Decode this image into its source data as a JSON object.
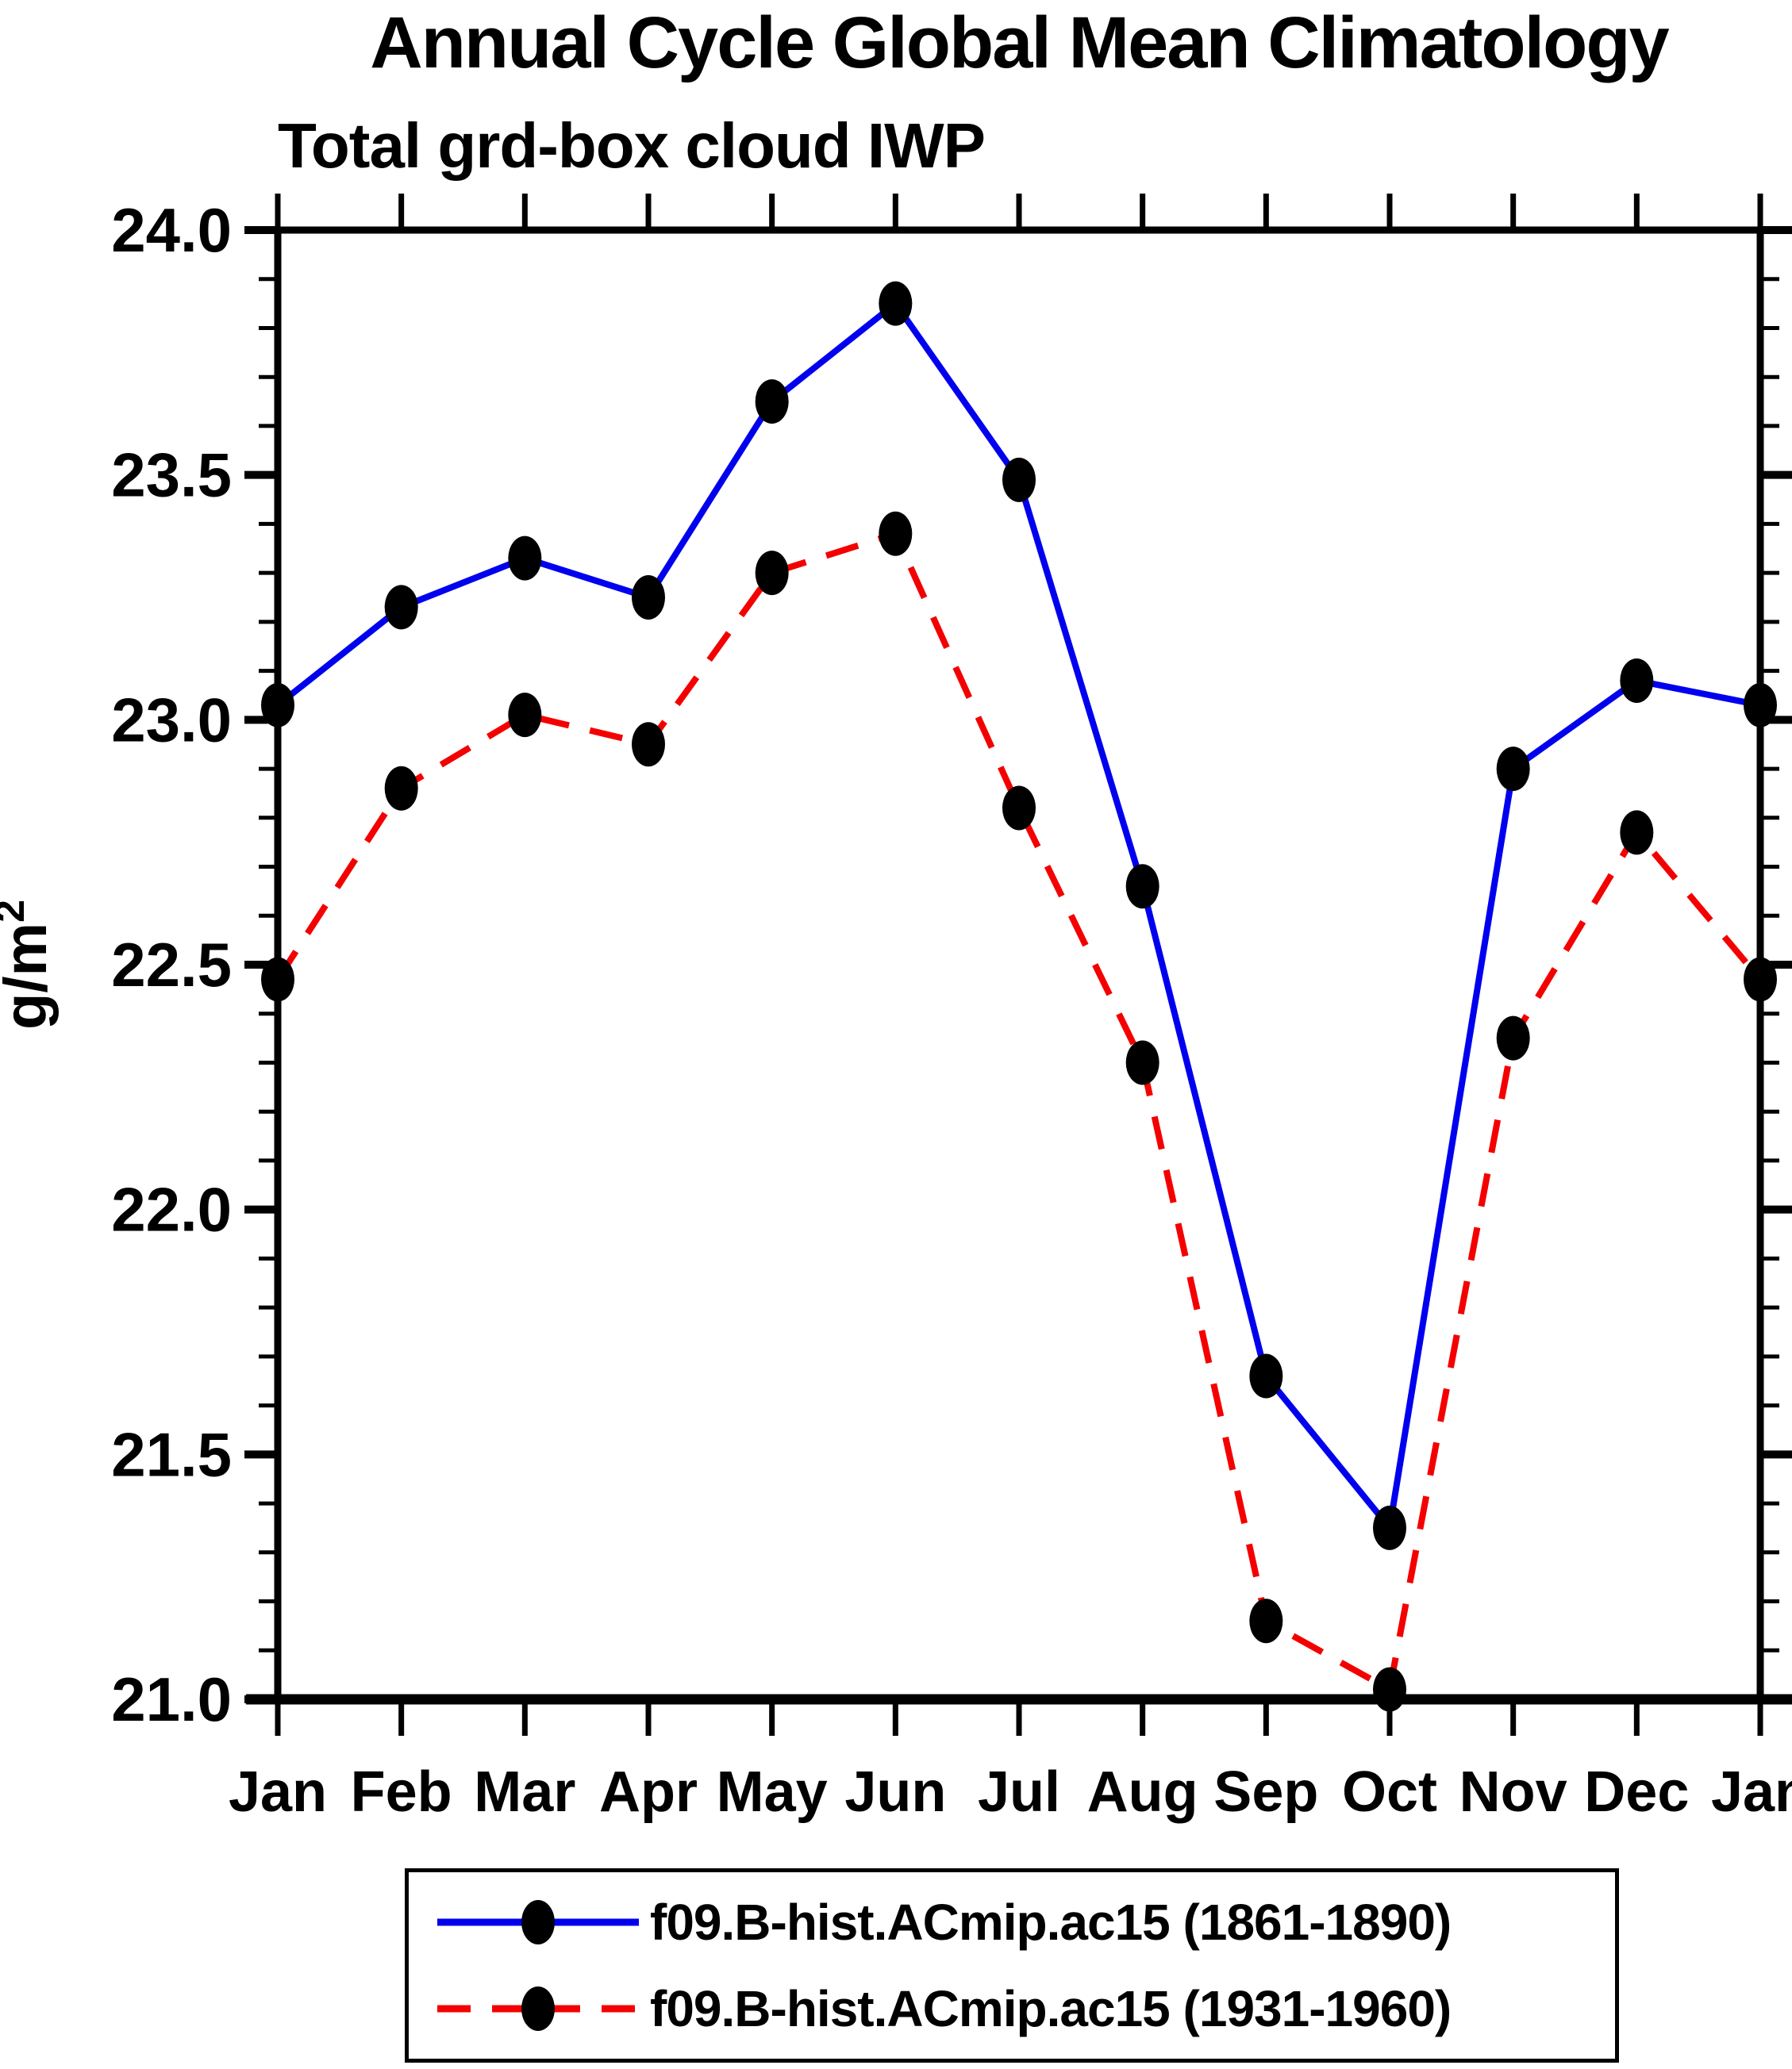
{
  "title": "Annual Cycle Global Mean Climatology",
  "subtitle": "Total grd-box cloud IWP",
  "y_axis": {
    "label": "g/m",
    "label_superscript": "2",
    "min": 21.0,
    "max": 24.0,
    "major_step": 0.5,
    "minor_step": 0.1,
    "tick_labels": [
      "24.0",
      "23.5",
      "23.0",
      "22.5",
      "22.0",
      "21.5",
      "21.0"
    ]
  },
  "x_axis": {
    "tick_labels": [
      "Jan",
      "Feb",
      "Mar",
      "Apr",
      "May",
      "Jun",
      "Jul",
      "Aug",
      "Sep",
      "Oct",
      "Nov",
      "Dec",
      "Jan"
    ]
  },
  "legend": {
    "items": [
      {
        "label": "f09.B-hist.ACmip.ac15 (1861-1890)",
        "color": "#0000ee",
        "style": "solid",
        "marker": "filled-circle"
      },
      {
        "label": "f09.B-hist.ACmip.ac15 (1931-1960)",
        "color": "#f50000",
        "style": "dashed",
        "marker": "filled-circle"
      }
    ]
  },
  "chart_data": {
    "type": "line",
    "title": "Annual Cycle Global Mean Climatology",
    "subtitle": "Total grd-box cloud IWP",
    "xlabel": "",
    "ylabel": "g/m²",
    "ylim": [
      21.0,
      24.0
    ],
    "y_major_tick_step": 0.5,
    "y_minor_tick_step": 0.1,
    "grid": false,
    "legend_position": "bottom",
    "categories": [
      "Jan",
      "Feb",
      "Mar",
      "Apr",
      "May",
      "Jun",
      "Jul",
      "Aug",
      "Sep",
      "Oct",
      "Nov",
      "Dec",
      "Jan"
    ],
    "series": [
      {
        "name": "f09.B-hist.ACmip.ac15 (1861-1890)",
        "color": "#0000ee",
        "line_style": "solid",
        "marker": "filled-circle",
        "marker_color": "#000000",
        "values": [
          23.03,
          23.23,
          23.33,
          23.25,
          23.65,
          23.85,
          23.49,
          22.66,
          21.66,
          21.35,
          22.9,
          23.08,
          23.03
        ]
      },
      {
        "name": "f09.B-hist.ACmip.ac15 (1931-1960)",
        "color": "#f50000",
        "line_style": "dashed",
        "marker": "filled-circle",
        "marker_color": "#000000",
        "values": [
          22.47,
          22.86,
          23.01,
          22.95,
          23.3,
          23.38,
          22.82,
          22.3,
          21.16,
          21.02,
          22.35,
          22.77,
          22.47
        ]
      }
    ]
  }
}
